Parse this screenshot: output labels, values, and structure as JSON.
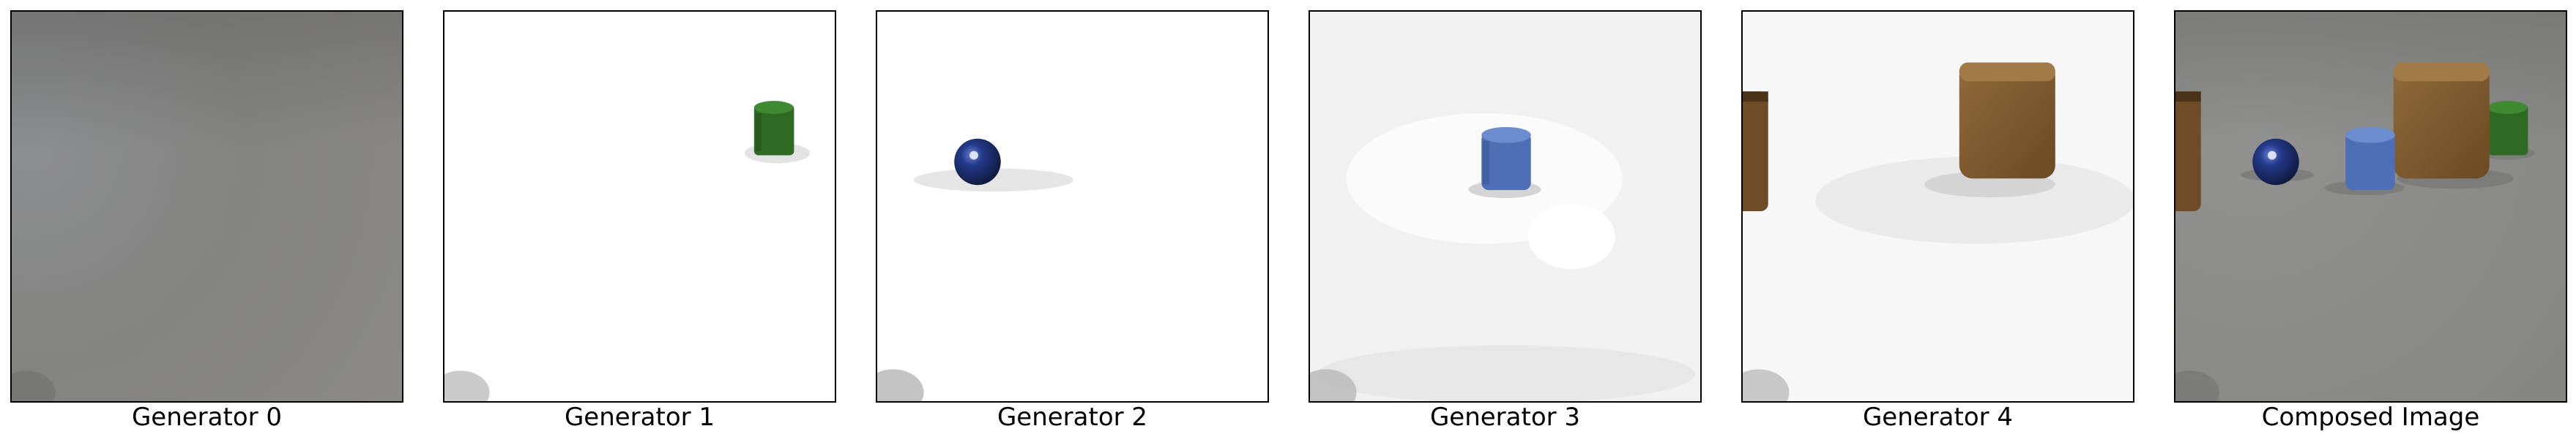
{
  "panels": [
    {
      "caption": "Generator 0",
      "content": "grey background"
    },
    {
      "caption": "Generator 1",
      "content": "green cylinder"
    },
    {
      "caption": "Generator 2",
      "content": "blue metal sphere"
    },
    {
      "caption": "Generator 3",
      "content": "blue cylinder"
    },
    {
      "caption": "Generator 4",
      "content": "brown cube and brown cylinder"
    },
    {
      "caption": "Composed Image",
      "content": "composed scene"
    }
  ],
  "colors": {
    "background_grey": "#8a8a88",
    "green_object": "#2f6a25",
    "blue_sphere": "#243a8a",
    "blue_cylinder": "#4e6fb5",
    "brown_object": "#7f5a2e"
  }
}
